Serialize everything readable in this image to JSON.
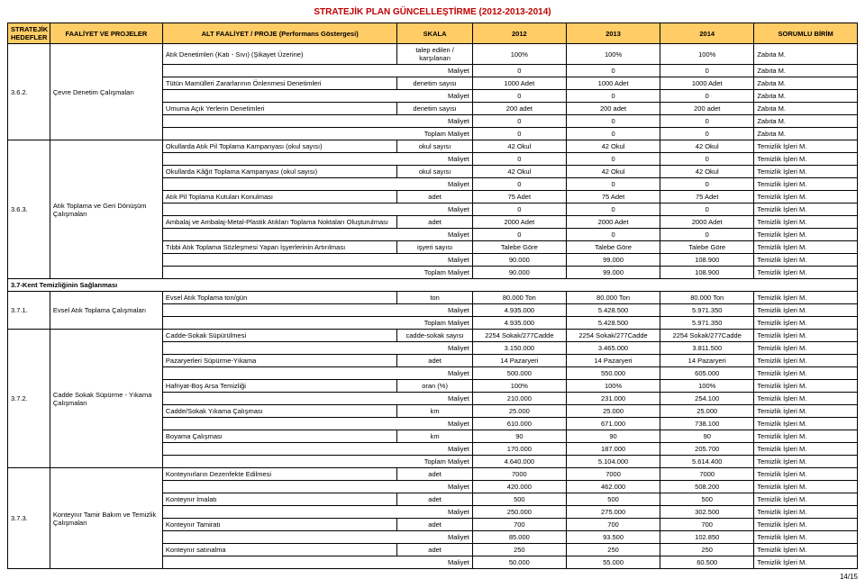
{
  "title": "STRATEJİK PLAN GÜNCELLEŞTİRME\n(2012-2013-2014)",
  "headers": [
    "STRATEJİK HEDEFLER",
    "FAALİYET VE PROJELER",
    "ALT FAALİYET / PROJE (Performans Göstergesi)",
    "SKALA",
    "2012",
    "2013",
    "2014",
    "SORUMLU BİRİM"
  ],
  "footer": "14/15",
  "groups": [
    {
      "code": "3.6.2.",
      "proj": "Çevre Denetim Çalışmaları",
      "rows": [
        [
          "Atık Denetimleri (Katı - Sıvı) (Şikayet Üzerine)",
          "talep edilen / karşılanan",
          "100%",
          "100%",
          "100%",
          "Zabıta M."
        ],
        [
          "Maliyet",
          "",
          "0",
          "0",
          "0",
          "Zabıta M."
        ],
        [
          "Tütün Mamülleri Zararlarının Önlenmesi Denetimleri",
          "denetim sayısı",
          "1000 Adet",
          "1000 Adet",
          "1000 Adet",
          "Zabıta M."
        ],
        [
          "Maliyet",
          "",
          "0",
          "0",
          "0",
          "Zabıta M."
        ],
        [
          "Umuma Açık Yerlerin Denetimleri",
          "denetim sayısı",
          "200 adet",
          "200 adet",
          "200 adet",
          "Zabıta M."
        ],
        [
          "Maliyet",
          "",
          "0",
          "0",
          "0",
          "Zabıta M."
        ],
        [
          "Toplam Maliyet",
          "",
          "0",
          "0",
          "0",
          "Zabıta M."
        ]
      ]
    },
    {
      "code": "3.6.3.",
      "proj": "Atık Toplama ve Geri Dönüşüm Çalışmaları",
      "rows": [
        [
          "Okullarda Atık Pil Toplama Kampanyası (okul sayısı)",
          "okul sayısı",
          "42 Okul",
          "42 Okul",
          "42 Okul",
          "Temizlik İşleri M."
        ],
        [
          "Maliyet",
          "",
          "0",
          "0",
          "0",
          "Temizlik İşleri M."
        ],
        [
          "Okullarda Kâğıt Toplama Kampanyası (okul sayısı)",
          "okul sayısı",
          "42 Okul",
          "42 Okul",
          "42 Okul",
          "Temizlik İşleri M."
        ],
        [
          "Maliyet",
          "",
          "0",
          "0",
          "0",
          "Temizlik İşleri M."
        ],
        [
          "Atık Pil Toplama Kutuları Konulması",
          "adet",
          "75 Adet",
          "75 Adet",
          "75 Adet",
          "Temizlik İşleri M."
        ],
        [
          "Maliyet",
          "",
          "0",
          "0",
          "0",
          "Temizlik İşleri M."
        ],
        [
          "Ambalaj ve Ambalaj-Metal-Plastik Atıkları Toplama Noktaları Oluşturulması",
          "adet",
          "2000 Adet",
          "2000 Adet",
          "2000 Adet",
          "Temizlik İşleri M."
        ],
        [
          "Maliyet",
          "",
          "0",
          "0",
          "0",
          "Temizlik İşleri M."
        ],
        [
          "Tıbbi Atık Toplama Sözleşmesi Yapan İşyerlerinin Artırılması",
          "işyeri sayısı",
          "Talebe Göre",
          "Talebe Göre",
          "Talebe Göre",
          "Temizlik İşleri M."
        ],
        [
          "Maliyet",
          "",
          "90.000",
          "99.000",
          "108.900",
          "Temizlik İşleri M."
        ],
        [
          "Toplam Maliyet",
          "",
          "90.000",
          "99.000",
          "108.900",
          "Temizlik İşleri M."
        ]
      ]
    },
    {
      "section": "3.7-Kent Temizliğinin Sağlanması"
    },
    {
      "code": "3.7.1.",
      "proj": "Evsel Atık Toplama Çalışmaları",
      "rows": [
        [
          "Evsel Atık Toplama ton/gün",
          "ton",
          "80.000 Ton",
          "80.000 Ton",
          "80.000 Ton",
          "Temizlik İşleri M."
        ],
        [
          "Maliyet",
          "",
          "4.935.000",
          "5.428.500",
          "5.971.350",
          "Temizlik İşleri M."
        ],
        [
          "Toplam Maliyet",
          "",
          "4.935.000",
          "5.428.500",
          "5.971.350",
          "Temizlik İşleri M."
        ]
      ]
    },
    {
      "code": "3.7.2.",
      "proj": "Cadde Sokak Süpürme - Yıkama Çalışmaları",
      "rows": [
        [
          "Cadde-Sokak Süpürülmesi",
          "cadde-sokak sayısı",
          "2254 Sokak/277Cadde",
          "2254 Sokak/277Cadde",
          "2254 Sokak/277Cadde",
          "Temizlik İşleri M."
        ],
        [
          "Maliyet",
          "",
          "3.150.000",
          "3.465.000",
          "3.811.500",
          "Temizlik İşleri M."
        ],
        [
          "Pazaryerleri Süpürme-Yıkama",
          "adet",
          "14 Pazaryeri",
          "14 Pazaryeri",
          "14 Pazaryeri",
          "Temizlik İşleri M."
        ],
        [
          "Maliyet",
          "",
          "500.000",
          "550.000",
          "605.000",
          "Temizlik İşleri M."
        ],
        [
          "Hafriyat-Boş Arsa Temizliği",
          "oran (%)",
          "100%",
          "100%",
          "100%",
          "Temizlik İşleri M."
        ],
        [
          "Maliyet",
          "",
          "210.000",
          "231.000",
          "254.100",
          "Temizlik İşleri M."
        ],
        [
          "Cadde/Sokak Yıkama Çalışması",
          "km",
          "25.000",
          "25.000",
          "25.000",
          "Temizlik İşleri M."
        ],
        [
          "Maliyet",
          "",
          "610.000",
          "671.000",
          "738.100",
          "Temizlik İşleri M."
        ],
        [
          "Boyama Çalışması",
          "km",
          "90",
          "90",
          "90",
          "Temizlik İşleri M."
        ],
        [
          "Maliyet",
          "",
          "170.000",
          "187.000",
          "205.700",
          "Temizlik İşleri M."
        ],
        [
          "Toplam Maliyet",
          "",
          "4.640.000",
          "5.104.000",
          "5.614.400",
          "Temizlik İşleri M."
        ]
      ]
    },
    {
      "code": "3.7.3.",
      "proj": "Konteynır Tamir Bakım ve Temizlik Çalışmaları",
      "rows": [
        [
          "Konteynırların Dezenfekte Edilmesi",
          "adet",
          "7000",
          "7000",
          "7000",
          "Temizlik İşleri M."
        ],
        [
          "Maliyet",
          "",
          "420.000",
          "462.000",
          "508.200",
          "Temizlik İşleri M."
        ],
        [
          "Konteynır İmalatı",
          "adet",
          "500",
          "500",
          "500",
          "Temizlik İşleri M."
        ],
        [
          "Maliyet",
          "",
          "250.000",
          "275.000",
          "302.500",
          "Temizlik İşleri M."
        ],
        [
          "Konteynır Tamiratı",
          "adet",
          "700",
          "700",
          "700",
          "Temizlik İşleri M."
        ],
        [
          "Maliyet",
          "",
          "85.000",
          "93.500",
          "102.850",
          "Temizlik İşleri M."
        ],
        [
          "Konteynır satınalma",
          "adet",
          "250",
          "250",
          "250",
          "Temizlik İşleri M."
        ],
        [
          "Maliyet",
          "",
          "50.000",
          "55.000",
          "60.500",
          "Temizlik İşleri M."
        ]
      ]
    }
  ]
}
